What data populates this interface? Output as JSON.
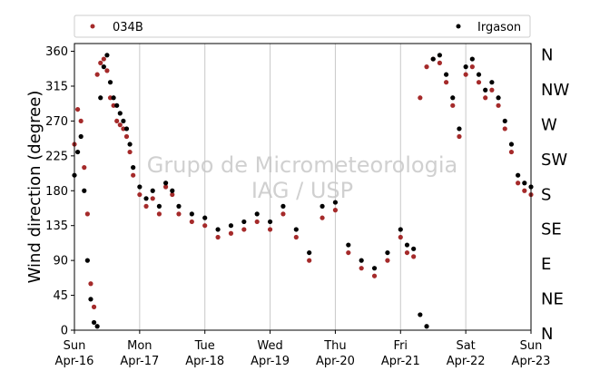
{
  "chart_data": {
    "type": "scatter",
    "title": "",
    "xlabel": "",
    "ylabel": "Wind direction (degree)",
    "ylim": [
      0,
      370
    ],
    "xlim": [
      0,
      7
    ],
    "yticks": [
      0,
      45,
      90,
      135,
      180,
      225,
      270,
      315,
      360
    ],
    "xticks": [
      {
        "day": "Sun",
        "date": "Apr-16"
      },
      {
        "day": "Mon",
        "date": "Apr-17"
      },
      {
        "day": "Tue",
        "date": "Apr-18"
      },
      {
        "day": "Wed",
        "date": "Apr-19"
      },
      {
        "day": "Thu",
        "date": "Apr-20"
      },
      {
        "day": "Fri",
        "date": "Apr-21"
      },
      {
        "day": "Sat",
        "date": "Apr-22"
      },
      {
        "day": "Sun",
        "date": "Apr-23"
      }
    ],
    "compass_labels": [
      "N",
      "NE",
      "E",
      "SE",
      "S",
      "SW",
      "W",
      "NW",
      "N"
    ],
    "grid": "vertical",
    "legend_position": "top",
    "watermark": [
      "Grupo de Micrometeorologia",
      "IAG / USP"
    ],
    "series": [
      {
        "name": "034B",
        "color": "#a52a2a",
        "x": [
          0.0,
          0.05,
          0.1,
          0.15,
          0.2,
          0.25,
          0.3,
          0.35,
          0.4,
          0.45,
          0.5,
          0.55,
          0.6,
          0.65,
          0.7,
          0.75,
          0.8,
          0.85,
          0.9,
          1.0,
          1.1,
          1.2,
          1.3,
          1.4,
          1.5,
          1.6,
          1.8,
          2.0,
          2.2,
          2.4,
          2.6,
          2.8,
          3.0,
          3.2,
          3.4,
          3.6,
          3.8,
          4.0,
          4.2,
          4.4,
          4.6,
          4.8,
          5.0,
          5.1,
          5.2,
          5.3,
          5.4,
          5.5,
          5.6,
          5.7,
          5.8,
          5.9,
          6.0,
          6.1,
          6.2,
          6.3,
          6.4,
          6.5,
          6.6,
          6.7,
          6.8,
          6.9,
          7.0
        ],
        "y": [
          240,
          285,
          270,
          210,
          150,
          60,
          30,
          330,
          345,
          350,
          335,
          300,
          290,
          270,
          265,
          260,
          250,
          230,
          200,
          175,
          160,
          170,
          150,
          185,
          175,
          150,
          140,
          135,
          120,
          125,
          130,
          140,
          130,
          150,
          120,
          90,
          145,
          155,
          100,
          80,
          70,
          90,
          120,
          100,
          95,
          300,
          340,
          350,
          345,
          320,
          290,
          250,
          330,
          340,
          320,
          300,
          310,
          290,
          260,
          230,
          190,
          180,
          175
        ]
      },
      {
        "name": "Irgason",
        "color": "#000000",
        "x": [
          0.0,
          0.05,
          0.1,
          0.15,
          0.2,
          0.25,
          0.3,
          0.35,
          0.4,
          0.45,
          0.5,
          0.55,
          0.6,
          0.65,
          0.7,
          0.75,
          0.8,
          0.85,
          0.9,
          1.0,
          1.1,
          1.2,
          1.3,
          1.4,
          1.5,
          1.6,
          1.8,
          2.0,
          2.2,
          2.4,
          2.6,
          2.8,
          3.0,
          3.2,
          3.4,
          3.6,
          3.8,
          4.0,
          4.2,
          4.4,
          4.6,
          4.8,
          5.0,
          5.1,
          5.2,
          5.3,
          5.4,
          5.5,
          5.6,
          5.7,
          5.8,
          5.9,
          6.0,
          6.1,
          6.2,
          6.3,
          6.4,
          6.5,
          6.6,
          6.7,
          6.8,
          6.9,
          7.0
        ],
        "y": [
          200,
          230,
          250,
          180,
          90,
          40,
          10,
          5,
          300,
          340,
          355,
          320,
          300,
          290,
          280,
          270,
          260,
          240,
          210,
          185,
          170,
          180,
          160,
          190,
          180,
          160,
          150,
          145,
          130,
          135,
          140,
          150,
          140,
          160,
          130,
          100,
          160,
          165,
          110,
          90,
          80,
          100,
          130,
          110,
          105,
          20,
          5,
          350,
          355,
          330,
          300,
          260,
          340,
          350,
          330,
          310,
          320,
          300,
          270,
          240,
          200,
          190,
          185
        ]
      }
    ]
  }
}
